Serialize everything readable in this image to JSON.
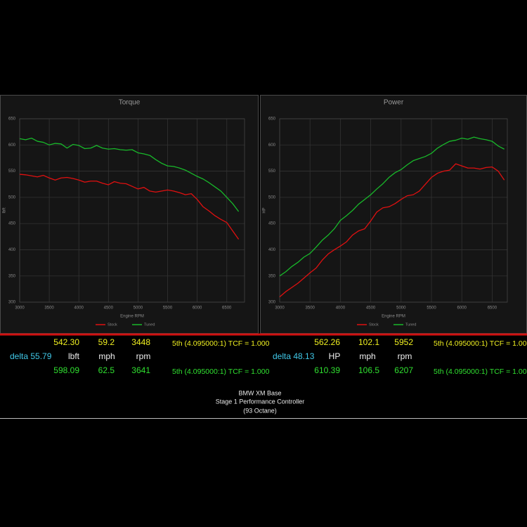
{
  "chart_data": [
    {
      "type": "line",
      "title": "Torque",
      "x_label": "Engine RPM",
      "y_label": "lbft",
      "x": [
        3000,
        3100,
        3200,
        3300,
        3400,
        3500,
        3600,
        3700,
        3800,
        3900,
        4000,
        4100,
        4200,
        4300,
        4400,
        4500,
        4600,
        4700,
        4800,
        4900,
        5000,
        5100,
        5200,
        5300,
        5400,
        5500,
        5600,
        5700,
        5800,
        5900,
        6000,
        6100,
        6200,
        6300,
        6400,
        6500,
        6600,
        6700
      ],
      "series": [
        {
          "name": "Stock",
          "color": "#e01010",
          "values": [
            544,
            543,
            541,
            539,
            542,
            537,
            533,
            537,
            538,
            536,
            533,
            529,
            531,
            531,
            527,
            524,
            530,
            527,
            526,
            521,
            516,
            519,
            512,
            510,
            512,
            514,
            512,
            509,
            505,
            507,
            496,
            482,
            474,
            465,
            458,
            452,
            436,
            420
          ]
        },
        {
          "name": "Tuned",
          "color": "#18b82a",
          "values": [
            612,
            610,
            613,
            607,
            605,
            600,
            603,
            602,
            594,
            601,
            599,
            593,
            594,
            599,
            594,
            592,
            593,
            591,
            590,
            591,
            585,
            583,
            580,
            572,
            565,
            560,
            559,
            556,
            552,
            546,
            540,
            535,
            528,
            520,
            512,
            500,
            488,
            473
          ]
        }
      ],
      "xlim": [
        3000,
        6800
      ],
      "xticks": [
        3000,
        3500,
        4000,
        4500,
        5000,
        5500,
        6000,
        6500
      ],
      "ylim": [
        300,
        650
      ],
      "yticks": [
        300,
        350,
        400,
        450,
        500,
        550,
        600,
        650
      ],
      "grid": true,
      "legend": "bottom"
    },
    {
      "type": "line",
      "title": "Power",
      "x_label": "Engine RPM",
      "y_label": "HP",
      "x": [
        3000,
        3100,
        3200,
        3300,
        3400,
        3500,
        3600,
        3700,
        3800,
        3900,
        4000,
        4100,
        4200,
        4300,
        4400,
        4500,
        4600,
        4700,
        4800,
        4900,
        5000,
        5100,
        5200,
        5300,
        5400,
        5500,
        5600,
        5700,
        5800,
        5900,
        6000,
        6100,
        6200,
        6300,
        6400,
        6500,
        6600,
        6700
      ],
      "series": [
        {
          "name": "Stock",
          "color": "#e01010",
          "values": [
            310,
            320,
            328,
            336,
            346,
            356,
            365,
            380,
            392,
            400,
            407,
            415,
            428,
            436,
            440,
            455,
            472,
            480,
            482,
            488,
            496,
            503,
            505,
            512,
            525,
            538,
            546,
            550,
            552,
            564,
            560,
            556,
            556,
            554,
            557,
            558,
            550,
            533
          ]
        },
        {
          "name": "Tuned",
          "color": "#18b82a",
          "values": [
            350,
            358,
            368,
            376,
            386,
            393,
            405,
            418,
            428,
            440,
            456,
            465,
            475,
            487,
            496,
            505,
            516,
            526,
            538,
            547,
            553,
            562,
            570,
            574,
            578,
            584,
            594,
            601,
            607,
            609,
            613,
            611,
            615,
            612,
            610,
            607,
            598,
            592
          ]
        }
      ],
      "xlim": [
        3000,
        6750
      ],
      "xticks": [
        3000,
        3500,
        4000,
        4500,
        5000,
        5500,
        6000,
        6500
      ],
      "ylim": [
        300,
        650
      ],
      "yticks": [
        300,
        350,
        400,
        450,
        500,
        550,
        600,
        650
      ],
      "grid": true,
      "legend": "bottom"
    }
  ],
  "readouts": [
    {
      "stock": [
        "542.30",
        "59.2",
        "3448",
        "5th (4.095000:1) TCF = 1.000"
      ],
      "delta": "delta 55.79",
      "units": [
        "lbft",
        "mph",
        "rpm"
      ],
      "tuned": [
        "598.09",
        "62.5",
        "3641",
        "5th (4.095000:1) TCF = 1.000"
      ]
    },
    {
      "stock": [
        "562.26",
        "102.1",
        "5952",
        "5th (4.095000:1) TCF = 1.000"
      ],
      "delta": "delta 48.13",
      "units": [
        "HP",
        "mph",
        "rpm"
      ],
      "tuned": [
        "610.39",
        "106.5",
        "6207",
        "5th (4.095000:1) TCF = 1.000"
      ]
    }
  ],
  "footer": [
    "BMW XM Base",
    "Stage 1 Performance Controller",
    "(93 Octane)"
  ]
}
